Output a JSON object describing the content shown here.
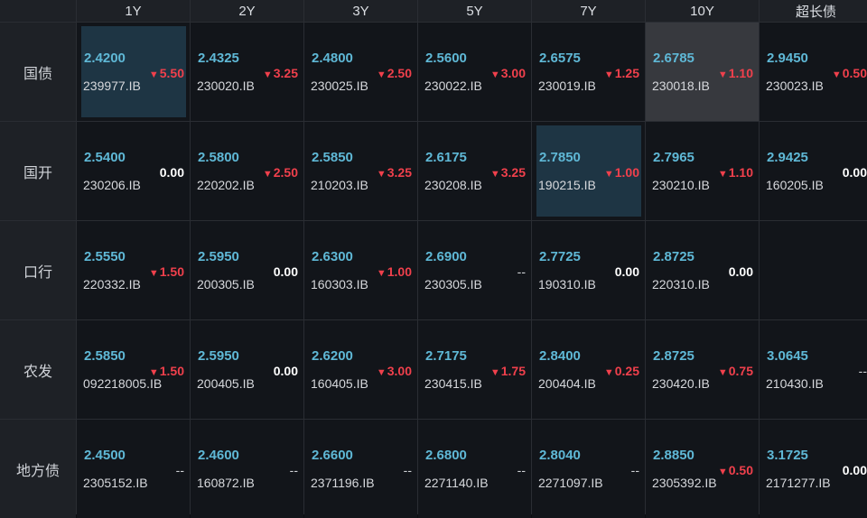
{
  "columns": [
    "1Y",
    "2Y",
    "3Y",
    "5Y",
    "7Y",
    "10Y",
    "超长债"
  ],
  "rows": [
    {
      "label": "国债",
      "cells": [
        {
          "rate": "2.4200",
          "code": "239977.IB",
          "change": "5.50",
          "dir": "down",
          "highlight": "blue"
        },
        {
          "rate": "2.4325",
          "code": "230020.IB",
          "change": "3.25",
          "dir": "down",
          "highlight": ""
        },
        {
          "rate": "2.4800",
          "code": "230025.IB",
          "change": "2.50",
          "dir": "down",
          "highlight": ""
        },
        {
          "rate": "2.5600",
          "code": "230022.IB",
          "change": "3.00",
          "dir": "down",
          "highlight": ""
        },
        {
          "rate": "2.6575",
          "code": "230019.IB",
          "change": "1.25",
          "dir": "down",
          "highlight": ""
        },
        {
          "rate": "2.6785",
          "code": "230018.IB",
          "change": "1.10",
          "dir": "down",
          "highlight": "gray"
        },
        {
          "rate": "2.9450",
          "code": "230023.IB",
          "change": "0.50",
          "dir": "down",
          "highlight": ""
        }
      ]
    },
    {
      "label": "国开",
      "cells": [
        {
          "rate": "2.5400",
          "code": "230206.IB",
          "change": "0.00",
          "dir": "flat",
          "highlight": ""
        },
        {
          "rate": "2.5800",
          "code": "220202.IB",
          "change": "2.50",
          "dir": "down",
          "highlight": ""
        },
        {
          "rate": "2.5850",
          "code": "210203.IB",
          "change": "3.25",
          "dir": "down",
          "highlight": ""
        },
        {
          "rate": "2.6175",
          "code": "230208.IB",
          "change": "3.25",
          "dir": "down",
          "highlight": ""
        },
        {
          "rate": "2.7850",
          "code": "190215.IB",
          "change": "1.00",
          "dir": "down",
          "highlight": "blue"
        },
        {
          "rate": "2.7965",
          "code": "230210.IB",
          "change": "1.10",
          "dir": "down",
          "highlight": ""
        },
        {
          "rate": "2.9425",
          "code": "160205.IB",
          "change": "0.00",
          "dir": "flat",
          "highlight": ""
        }
      ]
    },
    {
      "label": "口行",
      "cells": [
        {
          "rate": "2.5550",
          "code": "220332.IB",
          "change": "1.50",
          "dir": "down",
          "highlight": ""
        },
        {
          "rate": "2.5950",
          "code": "200305.IB",
          "change": "0.00",
          "dir": "flat",
          "highlight": ""
        },
        {
          "rate": "2.6300",
          "code": "160303.IB",
          "change": "1.00",
          "dir": "down",
          "highlight": ""
        },
        {
          "rate": "2.6900",
          "code": "230305.IB",
          "change": "--",
          "dir": "none",
          "highlight": ""
        },
        {
          "rate": "2.7725",
          "code": "190310.IB",
          "change": "0.00",
          "dir": "flat",
          "highlight": ""
        },
        {
          "rate": "2.8725",
          "code": "220310.IB",
          "change": "0.00",
          "dir": "flat",
          "highlight": ""
        },
        {
          "rate": "",
          "code": "",
          "change": "",
          "dir": "empty",
          "highlight": ""
        }
      ]
    },
    {
      "label": "农发",
      "cells": [
        {
          "rate": "2.5850",
          "code": "092218005.IB",
          "change": "1.50",
          "dir": "down",
          "highlight": ""
        },
        {
          "rate": "2.5950",
          "code": "200405.IB",
          "change": "0.00",
          "dir": "flat",
          "highlight": ""
        },
        {
          "rate": "2.6200",
          "code": "160405.IB",
          "change": "3.00",
          "dir": "down",
          "highlight": ""
        },
        {
          "rate": "2.7175",
          "code": "230415.IB",
          "change": "1.75",
          "dir": "down",
          "highlight": ""
        },
        {
          "rate": "2.8400",
          "code": "200404.IB",
          "change": "0.25",
          "dir": "down",
          "highlight": ""
        },
        {
          "rate": "2.8725",
          "code": "230420.IB",
          "change": "0.75",
          "dir": "down",
          "highlight": ""
        },
        {
          "rate": "3.0645",
          "code": "210430.IB",
          "change": "--",
          "dir": "none",
          "highlight": ""
        }
      ]
    },
    {
      "label": "地方债",
      "cells": [
        {
          "rate": "2.4500",
          "code": "2305152.IB",
          "change": "--",
          "dir": "none",
          "highlight": ""
        },
        {
          "rate": "2.4600",
          "code": "160872.IB",
          "change": "--",
          "dir": "none",
          "highlight": ""
        },
        {
          "rate": "2.6600",
          "code": "2371196.IB",
          "change": "--",
          "dir": "none",
          "highlight": ""
        },
        {
          "rate": "2.6800",
          "code": "2271140.IB",
          "change": "--",
          "dir": "none",
          "highlight": ""
        },
        {
          "rate": "2.8040",
          "code": "2271097.IB",
          "change": "--",
          "dir": "none",
          "highlight": ""
        },
        {
          "rate": "2.8850",
          "code": "2305392.IB",
          "change": "0.50",
          "dir": "down",
          "highlight": ""
        },
        {
          "rate": "3.1725",
          "code": "2171277.IB",
          "change": "0.00",
          "dir": "flat",
          "highlight": ""
        }
      ]
    }
  ],
  "icons": {
    "down": "triangle-down-icon"
  },
  "colors": {
    "rate": "#5fb8d6",
    "down": "#f0404c",
    "flat": "#ffffff",
    "highlight_blue": "#1e3544",
    "highlight_gray": "#37393e"
  }
}
